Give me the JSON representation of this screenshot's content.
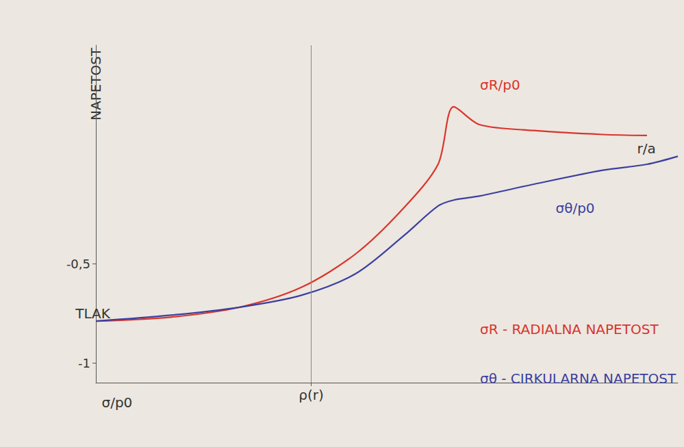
{
  "chart_data": {
    "type": "line",
    "y_label": "NAPETOST",
    "x": [
      0,
      1.29,
      2.47,
      3.53,
      4.47,
      5.29,
      5.88,
      6.15,
      6.59,
      7.53,
      8.71,
      9.47,
      10
    ],
    "series": [
      {
        "name": "σR/p0",
        "color": "#d9342b",
        "values": [
          -0.79,
          -0.77,
          -0.72,
          -0.62,
          -0.45,
          -0.22,
          0.0,
          0.29,
          0.2,
          0.17,
          0.15,
          0.145,
          null
        ]
      },
      {
        "name": "σθ/p0",
        "color": "#3b3fa0",
        "values": [
          -0.79,
          -0.76,
          -0.72,
          -0.66,
          -0.55,
          -0.36,
          -0.21,
          -0.18,
          -0.16,
          -0.1,
          -0.03,
          0.0,
          0.04
        ]
      }
    ],
    "xlim": [
      0,
      10
    ],
    "xticks": [
      {
        "value": 3.7,
        "label": "ρ(r)"
      }
    ],
    "ylim": [
      -1.1,
      0.6
    ],
    "yticks": [
      {
        "value": -1,
        "label": "-1"
      },
      {
        "value": -0.5,
        "label": "-0,5"
      }
    ],
    "grid": false,
    "annotations": [
      {
        "text": "σR/p0",
        "x": 6.6,
        "y": 0.4,
        "color": "#d9342b"
      },
      {
        "text": "σθ/p0",
        "x": 7.9,
        "y": -0.22,
        "color": "#3b3fa0"
      },
      {
        "text": "σR - RADIALNA NAPETOST",
        "x": 6.6,
        "y": -0.83,
        "color": "#d9342b"
      },
      {
        "text": "σθ - CIRKULARNA NAPETOST",
        "x": 6.6,
        "y": -1.08,
        "color": "#3b3fa0"
      },
      {
        "text": "TLAK",
        "x": -0.35,
        "y": -0.75,
        "color": "#333333"
      },
      {
        "text": "σ/p0",
        "x": 0.1,
        "y": -1.2,
        "color": "#333333"
      },
      {
        "text": "r/a",
        "x": 9.3,
        "y": 0.08,
        "color": "#333333"
      }
    ]
  }
}
